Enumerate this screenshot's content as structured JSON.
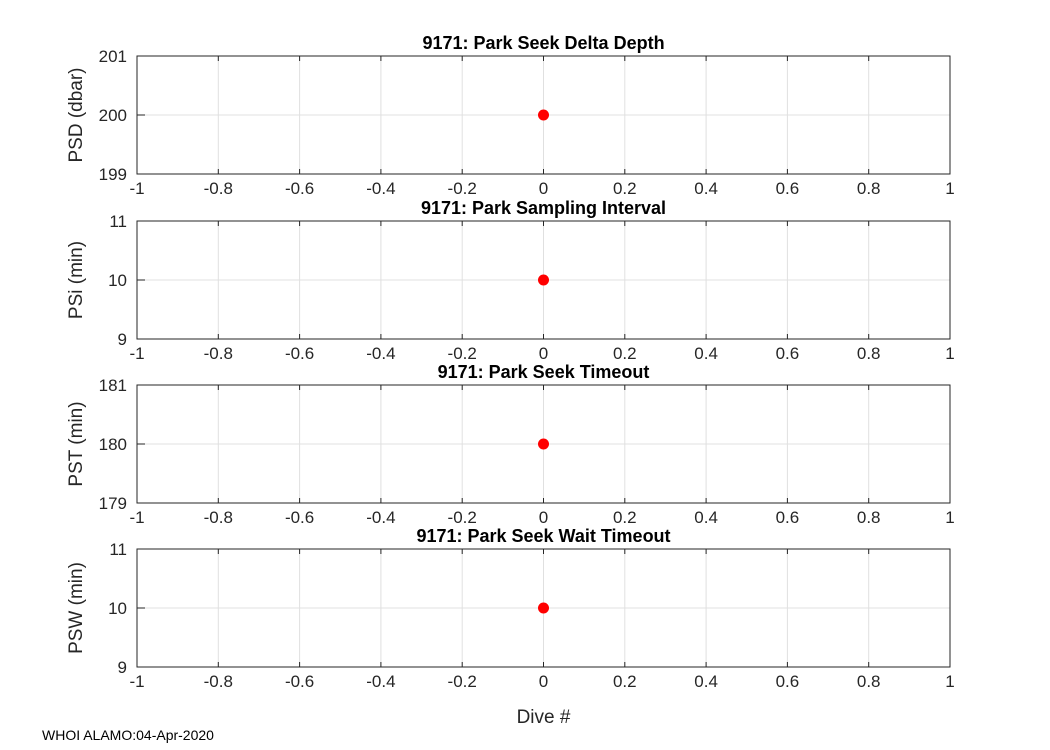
{
  "chart_data": [
    {
      "type": "scatter",
      "title": "9171: Park Seek Delta Depth",
      "xlabel": "",
      "ylabel": "PSD (dbar)",
      "xlim": [
        -1,
        1
      ],
      "ylim": [
        199,
        201
      ],
      "yticks": [
        "199",
        "200",
        "201"
      ],
      "x": [
        0
      ],
      "y": [
        200
      ],
      "grid": true,
      "marker_color": "#ff0000"
    },
    {
      "type": "scatter",
      "title": "9171: Park Sampling Interval",
      "xlabel": "",
      "ylabel": "PSi (min)",
      "xlim": [
        -1,
        1
      ],
      "ylim": [
        9,
        11
      ],
      "yticks": [
        "9",
        "10",
        "11"
      ],
      "x": [
        0
      ],
      "y": [
        10
      ],
      "grid": true,
      "marker_color": "#ff0000"
    },
    {
      "type": "scatter",
      "title": "9171: Park Seek Timeout",
      "xlabel": "",
      "ylabel": "PST (min)",
      "xlim": [
        -1,
        1
      ],
      "ylim": [
        179,
        181
      ],
      "yticks": [
        "179",
        "180",
        "181"
      ],
      "x": [
        0
      ],
      "y": [
        180
      ],
      "grid": true,
      "marker_color": "#ff0000"
    },
    {
      "type": "scatter",
      "title": "9171: Park Seek Wait Timeout",
      "xlabel": "Dive #",
      "ylabel": "PSW (min)",
      "xlim": [
        -1,
        1
      ],
      "ylim": [
        9,
        11
      ],
      "yticks": [
        "9",
        "10",
        "11"
      ],
      "x": [
        0
      ],
      "y": [
        10
      ],
      "grid": true,
      "marker_color": "#ff0000"
    }
  ],
  "xticks": [
    "-1",
    "-0.8",
    "-0.6",
    "-0.4",
    "-0.2",
    "0",
    "0.2",
    "0.4",
    "0.6",
    "0.8",
    "1"
  ],
  "footer": "WHOI ALAMO:04-Apr-2020"
}
